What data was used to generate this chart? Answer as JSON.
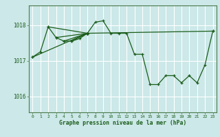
{
  "title": "Graphe pression niveau de la mer (hPa)",
  "bg_color": "#cce8e8",
  "plot_bg_color": "#cce8e8",
  "line_color": "#1a5c1a",
  "grid_color": "#ffffff",
  "border_color": "#4a7a4a",
  "ylim": [
    1015.55,
    1018.55
  ],
  "xlim": [
    -0.5,
    23.5
  ],
  "yticks": [
    1016,
    1017,
    1018
  ],
  "xtick_labels": [
    "0",
    "1",
    "2",
    "3",
    "4",
    "5",
    "6",
    "7",
    "8",
    "9",
    "10",
    "11",
    "12",
    "13",
    "14",
    "15",
    "16",
    "17",
    "18",
    "19",
    "20",
    "21",
    "22",
    "23"
  ],
  "series": [
    [
      0,
      1017.1
    ],
    [
      1,
      1017.25
    ],
    [
      2,
      1017.95
    ],
    [
      3,
      1017.65
    ],
    [
      4,
      1017.55
    ],
    [
      5,
      1017.55
    ],
    [
      6,
      1017.62
    ],
    [
      7,
      1017.77
    ],
    [
      8,
      1018.08
    ],
    [
      9,
      1018.12
    ],
    [
      10,
      1017.77
    ],
    [
      11,
      1017.77
    ],
    [
      12,
      1017.77
    ],
    [
      13,
      1017.18
    ],
    [
      14,
      1017.18
    ],
    [
      15,
      1016.33
    ],
    [
      16,
      1016.33
    ],
    [
      17,
      1016.58
    ],
    [
      18,
      1016.58
    ],
    [
      19,
      1016.38
    ],
    [
      20,
      1016.58
    ],
    [
      21,
      1016.38
    ],
    [
      22,
      1016.88
    ],
    [
      23,
      1017.83
    ]
  ],
  "extra_lines": [
    [
      [
        0,
        1017.1
      ],
      [
        7,
        1017.77
      ]
    ],
    [
      [
        7,
        1017.77
      ],
      [
        23,
        1017.83
      ]
    ],
    [
      [
        2,
        1017.95
      ],
      [
        7,
        1017.77
      ]
    ],
    [
      [
        3,
        1017.65
      ],
      [
        7,
        1017.77
      ]
    ],
    [
      [
        4,
        1017.55
      ],
      [
        7,
        1017.77
      ]
    ],
    [
      [
        5,
        1017.55
      ],
      [
        7,
        1017.77
      ]
    ]
  ]
}
